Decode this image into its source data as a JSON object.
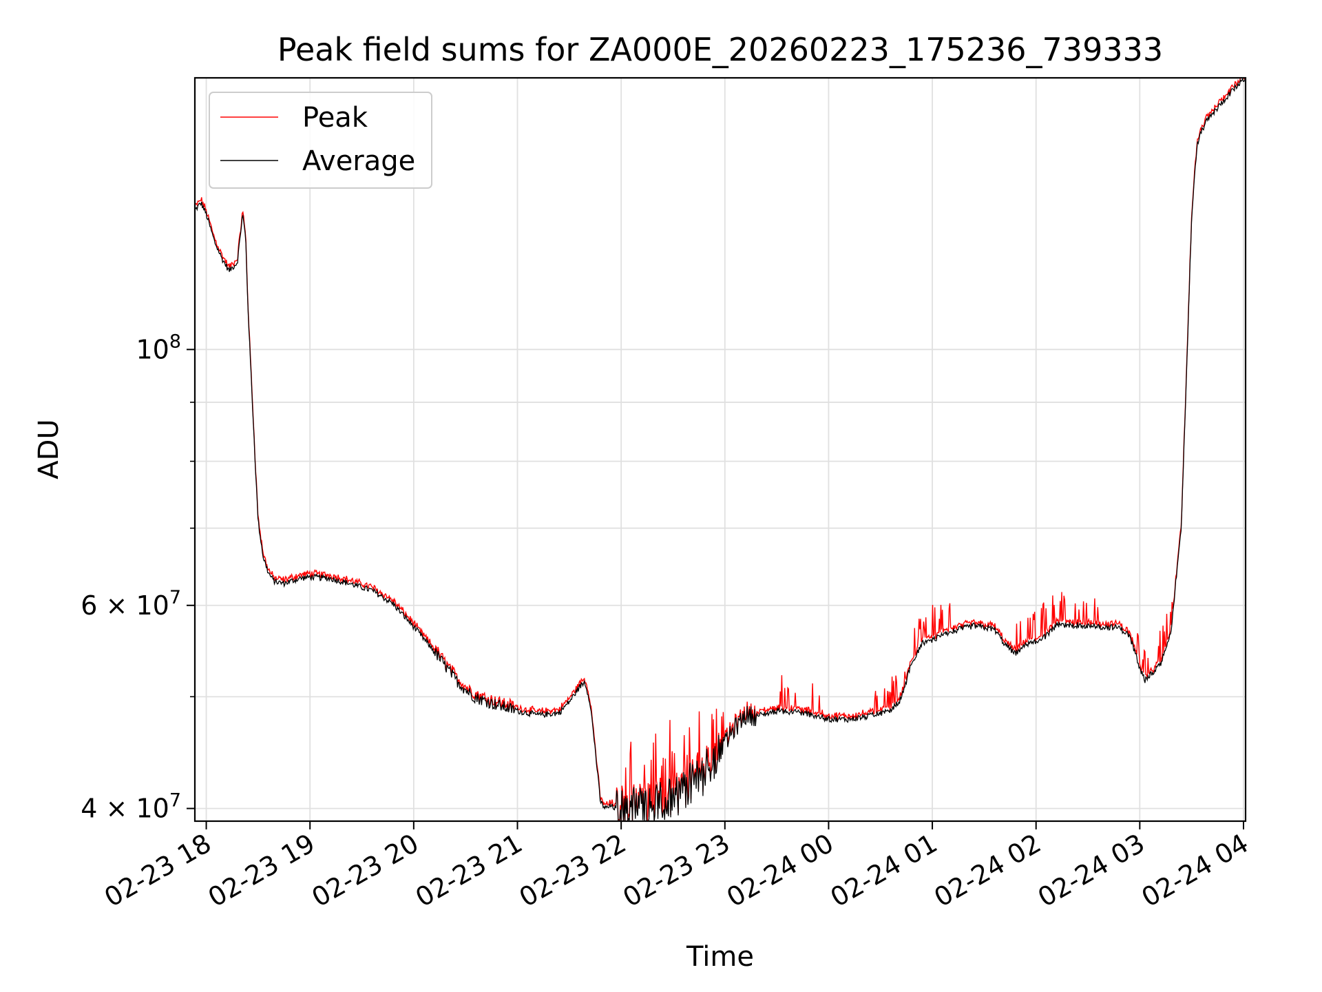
{
  "chart_data": {
    "type": "line",
    "title": "Peak field sums for ZA000E_20260223_175236_739333",
    "xlabel": "Time",
    "ylabel": "ADU",
    "yscale": "log",
    "ylim": [
      39000000,
      172000000
    ],
    "xlim_hours": [
      -0.11,
      10.02
    ],
    "grid": true,
    "legend_position": "upper-left",
    "x_ticks": [
      {
        "label": "02-23 18",
        "hour": 0
      },
      {
        "label": "02-23 19",
        "hour": 1
      },
      {
        "label": "02-23 20",
        "hour": 2
      },
      {
        "label": "02-23 21",
        "hour": 3
      },
      {
        "label": "02-23 22",
        "hour": 4
      },
      {
        "label": "02-23 23",
        "hour": 5
      },
      {
        "label": "02-24 00",
        "hour": 6
      },
      {
        "label": "02-24 01",
        "hour": 7
      },
      {
        "label": "02-24 02",
        "hour": 8
      },
      {
        "label": "02-24 03",
        "hour": 9
      },
      {
        "label": "02-24 04",
        "hour": 10
      }
    ],
    "y_major_ticks": [
      {
        "value": 40000000,
        "mantissa": "4",
        "base": "10",
        "exp": "7"
      },
      {
        "value": 60000000,
        "mantissa": "6",
        "base": "10",
        "exp": "7"
      },
      {
        "value": 100000000,
        "mantissa": "",
        "base": "10",
        "exp": "8"
      }
    ],
    "y_minor_ticks": [
      50000000,
      70000000,
      80000000,
      90000000
    ],
    "series": [
      {
        "name": "Peak",
        "color": "#ff0000"
      },
      {
        "name": "Average",
        "color": "#000000"
      }
    ],
    "x_hours": [
      -0.11,
      -0.05,
      0.0,
      0.08,
      0.15,
      0.22,
      0.3,
      0.35,
      0.38,
      0.4,
      0.42,
      0.45,
      0.48,
      0.5,
      0.55,
      0.6,
      0.65,
      0.7,
      0.75,
      0.8,
      0.9,
      1.0,
      1.2,
      1.4,
      1.6,
      1.8,
      2.0,
      2.2,
      2.4,
      2.5,
      2.6,
      2.8,
      3.0,
      3.2,
      3.4,
      3.5,
      3.6,
      3.65,
      3.7,
      3.75,
      3.8,
      3.85,
      3.9,
      4.0,
      4.2,
      4.4,
      4.6,
      4.8,
      5.0,
      5.1,
      5.2,
      5.3,
      5.5,
      5.7,
      5.9,
      6.0,
      6.2,
      6.4,
      6.6,
      6.7,
      6.8,
      6.9,
      7.0,
      7.2,
      7.4,
      7.6,
      7.7,
      7.8,
      7.9,
      8.0,
      8.1,
      8.2,
      8.4,
      8.6,
      8.8,
      8.9,
      9.0,
      9.05,
      9.1,
      9.2,
      9.3,
      9.4,
      9.45,
      9.5,
      9.55,
      9.6,
      9.65,
      9.7,
      9.8,
      9.9,
      10.02
    ],
    "average_values": [
      132000000,
      134000000,
      131000000,
      124000000,
      120000000,
      117000000,
      119000000,
      131000000,
      125000000,
      110000000,
      100000000,
      88000000,
      77000000,
      71000000,
      66000000,
      64000000,
      63000000,
      62800000,
      62700000,
      62900000,
      63300000,
      63500000,
      63300000,
      62600000,
      61800000,
      60200000,
      57500000,
      54700000,
      51800000,
      50700000,
      49900000,
      49200000,
      48600000,
      48200000,
      48400000,
      49500000,
      51000000,
      51500000,
      49500000,
      45000000,
      40500000,
      40000000,
      40200000,
      39800000,
      40200000,
      40500000,
      41500000,
      43000000,
      45500000,
      47000000,
      48200000,
      48100000,
      48600000,
      48500000,
      48100000,
      47800000,
      47800000,
      48100000,
      48600000,
      49800000,
      53500000,
      55600000,
      56000000,
      57000000,
      57600000,
      57200000,
      55500000,
      54500000,
      55400000,
      55800000,
      56500000,
      57600000,
      57700000,
      57500000,
      57400000,
      56500000,
      53000000,
      51600000,
      52200000,
      53300000,
      57000000,
      70000000,
      95000000,
      130000000,
      150000000,
      155000000,
      158000000,
      160000000,
      164000000,
      168000000,
      172000000
    ]
  },
  "legend": {
    "peak_label": "Peak",
    "average_label": "Average"
  }
}
